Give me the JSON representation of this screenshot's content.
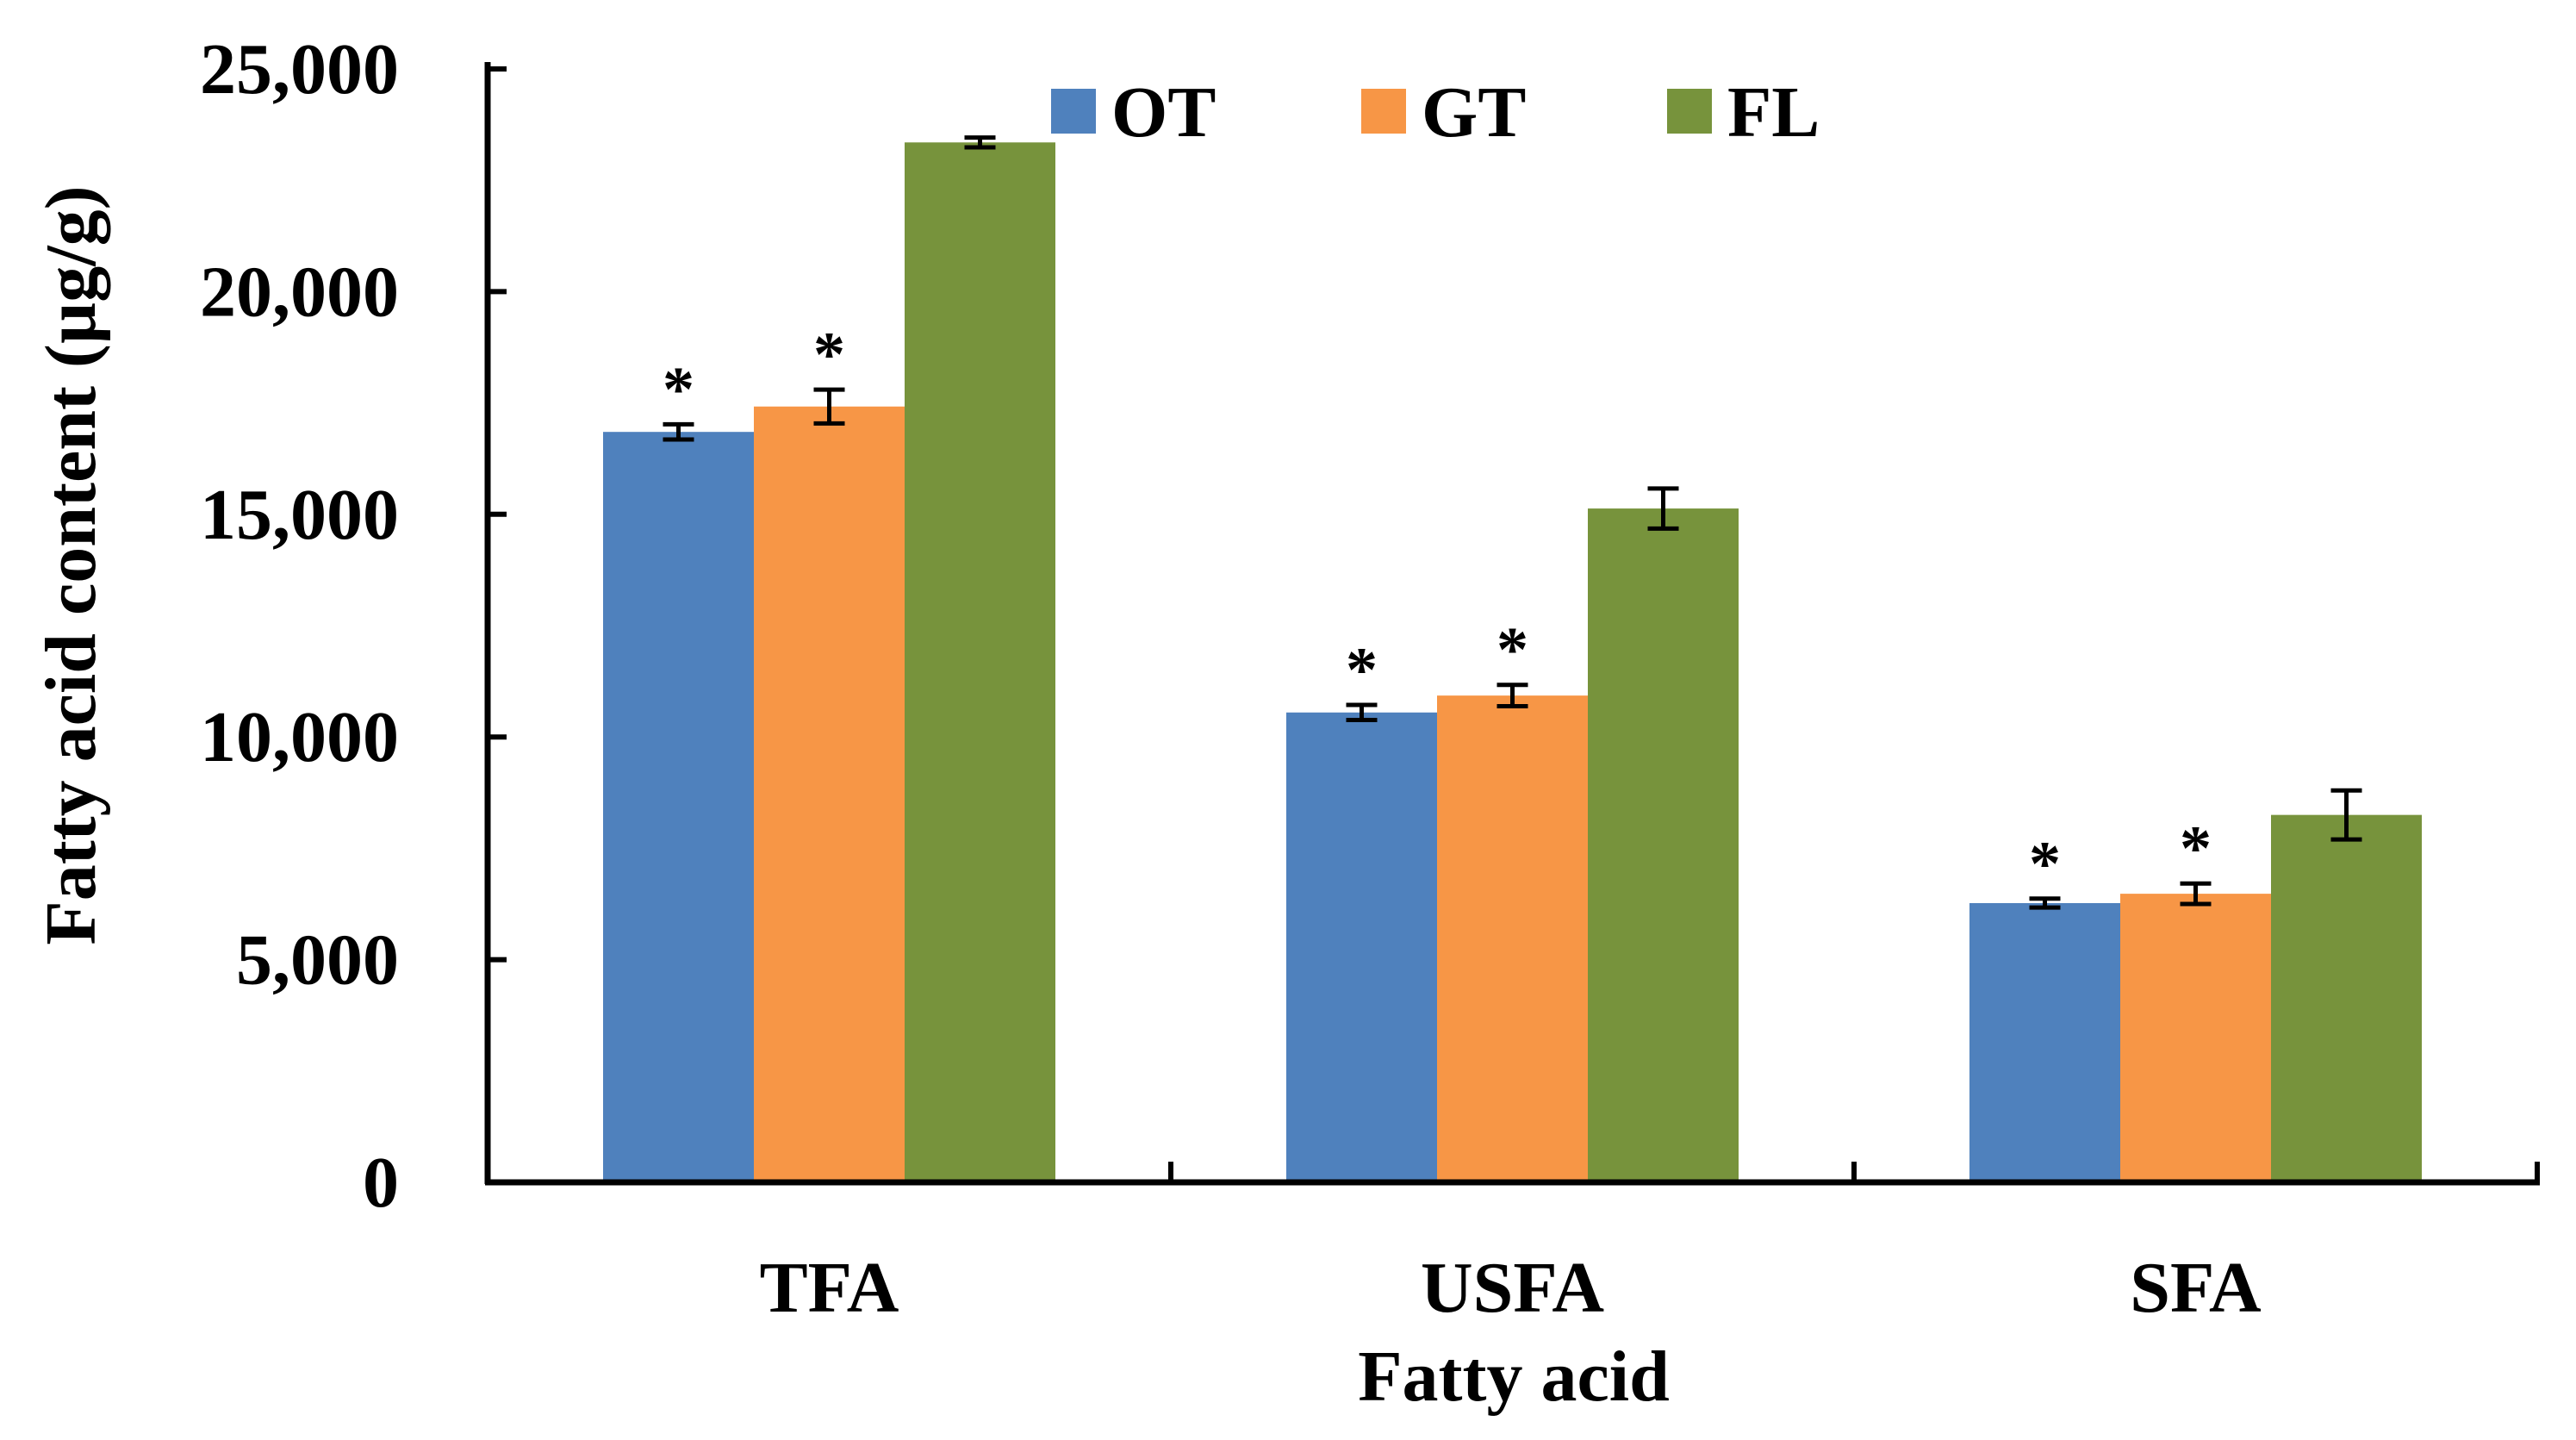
{
  "chart_data": {
    "type": "bar",
    "title": "",
    "xlabel": "Fatty acid",
    "ylabel": "Fatty acid content (µg/g)",
    "ylim": [
      0,
      25000
    ],
    "yticks": [
      0,
      5000,
      10000,
      15000,
      20000,
      25000
    ],
    "ytick_labels": [
      "0",
      "5,000",
      "10,000",
      "15,000",
      "20,000",
      "25,000"
    ],
    "categories": [
      "TFA",
      "USFA",
      "SFA"
    ],
    "legend_position": "top",
    "grid": false,
    "series": [
      {
        "name": "OT",
        "color": "#4F81BD",
        "values": [
          16850,
          10550,
          6270
        ],
        "errors": [
          170,
          170,
          100
        ],
        "significant": [
          true,
          true,
          true
        ]
      },
      {
        "name": "GT",
        "color": "#F79646",
        "values": [
          17420,
          10930,
          6480
        ],
        "errors": [
          380,
          240,
          230
        ],
        "significant": [
          true,
          true,
          true
        ]
      },
      {
        "name": "FL",
        "color": "#77933C",
        "values": [
          23350,
          15130,
          8250
        ],
        "errors": [
          110,
          450,
          550
        ],
        "significant": [
          false,
          false,
          false
        ]
      }
    ],
    "significance_marker": "*"
  }
}
